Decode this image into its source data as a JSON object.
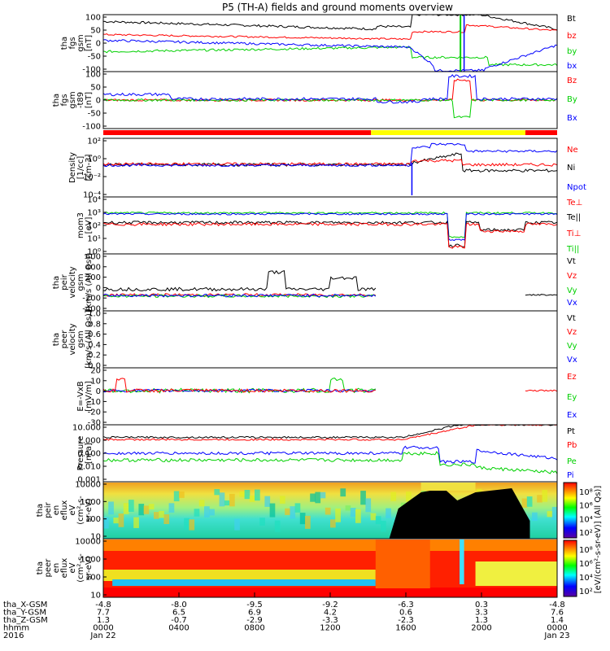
{
  "title": "P5 (TH-A) fields and ground moments overview",
  "colors": {
    "black": "#000000",
    "red": "#ff0000",
    "green": "#00d000",
    "blue": "#0000ff",
    "yellow": "#ffff00"
  },
  "chart_data": [
    {
      "type": "line",
      "ylabel": [
        "tha",
        "fgs",
        "gsm",
        "[nT]"
      ],
      "yticks": [
        "100",
        "50",
        "0",
        "-50",
        "-100"
      ],
      "legend": [
        {
          "name": "Bt",
          "color": "black"
        },
        {
          "name": "bz",
          "color": "red"
        },
        {
          "name": "by",
          "color": "green"
        },
        {
          "name": "bx",
          "color": "blue"
        }
      ]
    },
    {
      "type": "line",
      "ylabel": [
        "tha",
        "fgs",
        "gsm",
        "-t89",
        "[nT]"
      ],
      "yticks": [
        "100",
        "50",
        "0",
        "-50",
        "-100"
      ],
      "legend": [
        {
          "name": "Bz",
          "color": "red"
        },
        {
          "name": "By",
          "color": "green"
        },
        {
          "name": "Bx",
          "color": "blue"
        }
      ]
    },
    {
      "type": "line",
      "ylabel": [
        "Density",
        "[1/cc]",
        "[cm-3]"
      ],
      "yticks": [
        "10²",
        "10⁰",
        "10⁻²",
        "10⁻⁴"
      ],
      "legend": [
        {
          "name": "Ne",
          "color": "red"
        },
        {
          "name": "Ni",
          "color": "black"
        },
        {
          "name": "Npot",
          "color": "blue"
        }
      ]
    },
    {
      "type": "line",
      "ylabel": [
        "mom3",
        "[eV]"
      ],
      "yticks": [
        "10⁴",
        "10³",
        "10²",
        "10¹",
        "10⁰"
      ],
      "legend": [
        {
          "name": "Te⊥",
          "color": "red"
        },
        {
          "name": "Te||",
          "color": "black"
        },
        {
          "name": "Ti⊥",
          "color": "red"
        },
        {
          "name": "Ti||",
          "color": "green"
        }
      ]
    },
    {
      "type": "line",
      "ylabel": [
        "tha",
        "peir",
        "velocity",
        "gsm",
        "[km/s (All Qs)]"
      ],
      "yticks": [
        "600",
        "400",
        "200",
        "0",
        "-200",
        "-400"
      ],
      "legend": [
        {
          "name": "Vt",
          "color": "black"
        },
        {
          "name": "Vz",
          "color": "red"
        },
        {
          "name": "Vy",
          "color": "green"
        },
        {
          "name": "Vx",
          "color": "blue"
        }
      ]
    },
    {
      "type": "line",
      "ylabel": [
        "tha",
        "peer",
        "velocity",
        "gsm",
        "[km/s (All Qs)]"
      ],
      "yticks": [
        "1.0",
        "0.8",
        "0.6",
        "0.4",
        "0.2",
        "0.0"
      ],
      "legend": [
        {
          "name": "Vt",
          "color": "black"
        },
        {
          "name": "Vz",
          "color": "red"
        },
        {
          "name": "Vy",
          "color": "green"
        },
        {
          "name": "Vx",
          "color": "blue"
        }
      ]
    },
    {
      "type": "line",
      "ylabel": [
        "E=-VxB",
        "[mV/m]"
      ],
      "yticks": [
        "20",
        "10",
        "0",
        "-10",
        "-20",
        "-30"
      ],
      "legend": [
        {
          "name": "Ez",
          "color": "red"
        },
        {
          "name": "Ey",
          "color": "green"
        },
        {
          "name": "Ex",
          "color": "blue"
        }
      ]
    },
    {
      "type": "line",
      "ylabel": [
        "Pressure",
        "[nPa]"
      ],
      "yticks": [
        "10.000",
        "1.000",
        "0.100",
        "0.010",
        "0.001"
      ],
      "legend": [
        {
          "name": "Pt",
          "color": "black"
        },
        {
          "name": "Pb",
          "color": "red"
        },
        {
          "name": "Pe",
          "color": "green"
        },
        {
          "name": "Pi",
          "color": "blue"
        }
      ]
    },
    {
      "type": "heatmap",
      "ylabel": [
        "tha",
        "peir",
        "en",
        "eflux",
        "eV",
        "(cm²-s-",
        "sr-eV)"
      ],
      "yticks": [
        "10000",
        "1000",
        "100",
        "10"
      ],
      "colorbar": [
        "10⁸",
        "10⁶",
        "10⁴",
        "10²"
      ]
    },
    {
      "type": "heatmap",
      "ylabel": [
        "tha",
        "peer",
        "en",
        "eflux",
        "eV",
        "(cm²-s-",
        "sr-eV)"
      ],
      "yticks": [
        "10000",
        "1000",
        "100",
        "10"
      ],
      "colorbar": [
        "10⁸",
        "10⁶",
        "10⁴",
        "10²"
      ]
    }
  ],
  "colorbar_label": "[eV/(cm²-s-sr-eV)] (All Qs)]",
  "xaxis": {
    "rows": [
      {
        "label": "tha_X-GSM",
        "values": [
          "-4.8",
          "-8.0",
          "-9.5",
          "-9.2",
          "-6.3",
          "0.3",
          "-4.8"
        ]
      },
      {
        "label": "tha_Y-GSM",
        "values": [
          "7.7",
          "6.5",
          "6.9",
          "4.2",
          "0.6",
          "3.3",
          "7.6"
        ]
      },
      {
        "label": "tha_Z-GSM",
        "values": [
          "1.3",
          "-0.7",
          "-2.9",
          "-3.3",
          "-2.3",
          "1.3",
          "1.4"
        ]
      },
      {
        "label": "hhmm",
        "values": [
          "0000",
          "0400",
          "0800",
          "1200",
          "1600",
          "2000",
          "0000"
        ]
      },
      {
        "label": "2016",
        "values": [
          "Jan 22",
          "",
          "",
          "",
          "",
          "",
          "Jan 23"
        ]
      }
    ]
  }
}
